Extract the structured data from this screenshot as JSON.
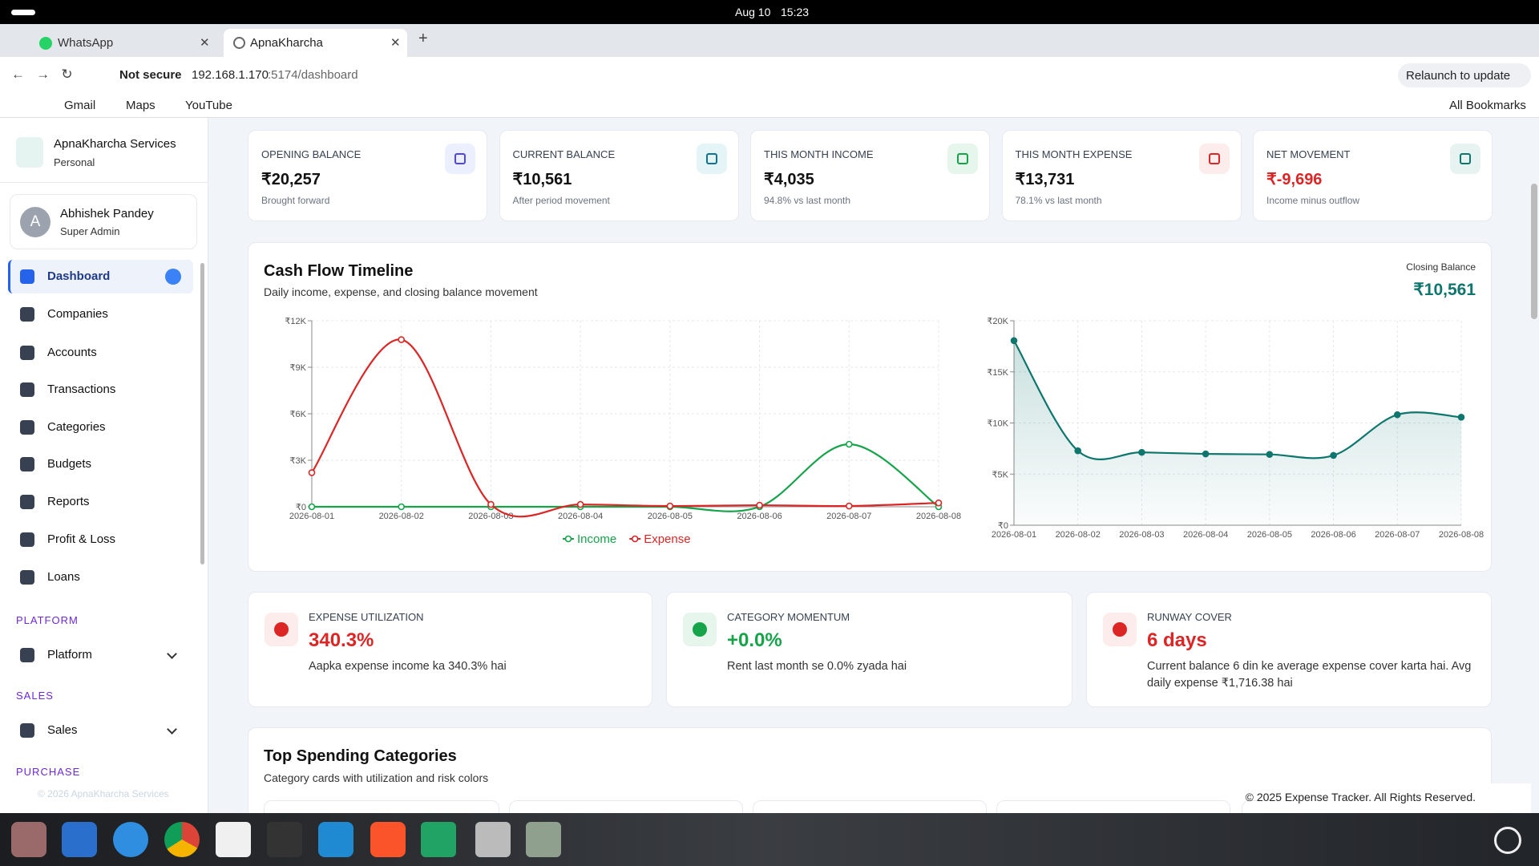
{
  "system_bar": {
    "date": "Aug 10",
    "time": "15:23"
  },
  "browser": {
    "tabs": [
      "WhatsApp",
      "ApnaKharcha"
    ],
    "security": "Not secure",
    "url_host": "192.168.1.170",
    "url_rest": ":5174/dashboard",
    "relaunch": "Relaunch to update",
    "bookmarks": [
      "Gmail",
      "Maps",
      "YouTube"
    ],
    "all_bookmarks": "All Bookmarks"
  },
  "sidebar": {
    "brand": "ApnaKharcha Services",
    "workspace": "Personal",
    "user": {
      "initial": "A",
      "name": "Abhishek Pandey",
      "role": "Super Admin"
    },
    "nav": [
      "Dashboard",
      "Companies",
      "Accounts",
      "Transactions",
      "Categories",
      "Budgets",
      "Reports",
      "Profit & Loss",
      "Loans"
    ],
    "sections": [
      {
        "title": "PLATFORM",
        "item": "Platform"
      },
      {
        "title": "SALES",
        "item": "Sales"
      },
      {
        "title": "PURCHASE"
      }
    ],
    "footer": "© 2026 ApnaKharcha Services"
  },
  "summary_cards": [
    {
      "label": "OPENING BALANCE",
      "value": "₹20,257",
      "note": "Brought forward"
    },
    {
      "label": "CURRENT BALANCE",
      "value": "₹10,561",
      "note": "After period movement"
    },
    {
      "label": "THIS MONTH INCOME",
      "value": "₹4,035",
      "note": "94.8% vs last month"
    },
    {
      "label": "THIS MONTH EXPENSE",
      "value": "₹13,731",
      "note": "78.1% vs last month"
    },
    {
      "label": "NET MOVEMENT",
      "value": "₹-9,696",
      "note": "Income minus outflow"
    }
  ],
  "cash_flow": {
    "title": "Cash Flow Timeline",
    "subtitle": "Daily income, expense, and closing balance movement",
    "closing_label": "Closing Balance",
    "closing_value": "₹10,561",
    "flow_chart": {
      "type": "line",
      "categories": [
        "2026-08-01",
        "2026-08-02",
        "2026-08-03",
        "2026-08-04",
        "2026-08-05",
        "2026-08-06",
        "2026-08-07",
        "2026-08-08"
      ],
      "series": [
        {
          "name": "Income",
          "color": "#16a34a",
          "values": [
            0,
            0,
            0,
            0,
            0,
            0,
            4035,
            0
          ]
        },
        {
          "name": "Expense",
          "color": "#dc2626",
          "values": [
            2200,
            10780,
            150,
            150,
            50,
            100,
            50,
            250
          ]
        }
      ],
      "ylim": [
        0,
        12000
      ],
      "yticks": [
        {
          "value": 0,
          "label": "₹0"
        },
        {
          "value": 3000,
          "label": "₹3K"
        },
        {
          "value": 6000,
          "label": "₹6K"
        },
        {
          "value": 9000,
          "label": "₹9K"
        },
        {
          "value": 12000,
          "label": "₹12K"
        }
      ],
      "grid": true,
      "legend": "bottom"
    },
    "balance_chart": {
      "type": "area",
      "categories": [
        "2026-08-01",
        "2026-08-02",
        "2026-08-03",
        "2026-08-04",
        "2026-08-05",
        "2026-08-06",
        "2026-08-07",
        "2026-08-08"
      ],
      "series": [
        {
          "color": "#0f766e",
          "values": [
            18057,
            7277,
            7127,
            6977,
            6927,
            6827,
            10812,
            10561
          ]
        }
      ],
      "ylim": [
        0,
        20000
      ],
      "yticks": [
        {
          "value": 0,
          "label": "₹0"
        },
        {
          "value": 5000,
          "label": "₹5K"
        },
        {
          "value": 10000,
          "label": "₹10K"
        },
        {
          "value": 15000,
          "label": "₹15K"
        },
        {
          "value": 20000,
          "label": "₹20K"
        }
      ],
      "grid": true
    }
  },
  "insights": [
    {
      "label": "EXPENSE UTILIZATION",
      "value": "340.3%",
      "text": "Aapka expense income ka 340.3% hai"
    },
    {
      "label": "CATEGORY MOMENTUM",
      "value": "+0.0%",
      "text": "Rent last month se 0.0% zyada hai"
    },
    {
      "label": "RUNWAY COVER",
      "value": "6 days",
      "text": "Current balance 6 din ke average expense cover karta hai. Avg daily expense ₹1,716.38 hai"
    }
  ],
  "top_spending": {
    "title": "Top Spending Categories",
    "subtitle": "Category cards with utilization and risk colors"
  },
  "footer": "© 2025 Expense Tracker. All Rights Reserved."
}
